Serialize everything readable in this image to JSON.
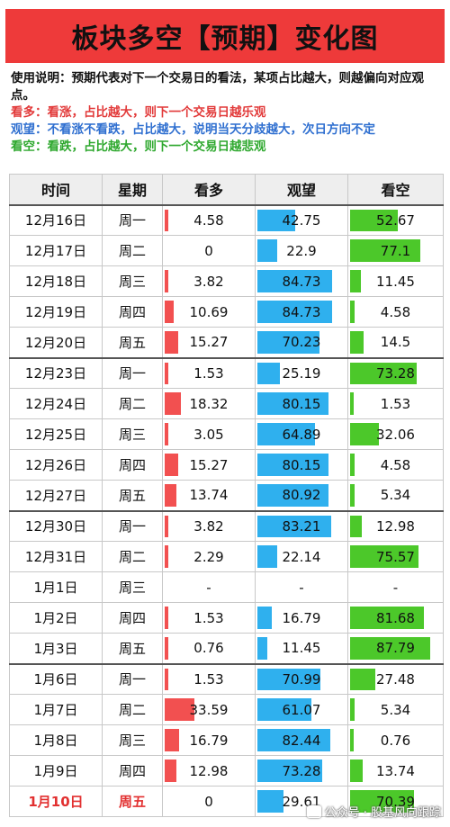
{
  "title": "板块多空【预期】变化图",
  "notes": {
    "usage": "使用说明：预期代表对下一个交易日的看法，某项占比越大，则越偏向对应观点。",
    "bull": "看多：看涨，占比越大，则下一个交易日越乐观",
    "neutral": "观望：不看涨不看跌，占比越大，说明当天分歧越大，次日方向不定",
    "bear": "看空：看跌，占比越大，则下一个交易日越悲观"
  },
  "headers": [
    "时间",
    "星期",
    "看多",
    "观望",
    "看空"
  ],
  "colors": {
    "bull": "#f25050",
    "neutral": "#2fb0ee",
    "bear": "#4cc82a",
    "title_bg": "#ee3a3a"
  },
  "rows": [
    {
      "date": "12月16日",
      "week": "周一",
      "bull": "4.58",
      "neutral": "42.75",
      "bear": "52.67",
      "week_start": true
    },
    {
      "date": "12月17日",
      "week": "周二",
      "bull": "0",
      "neutral": "22.9",
      "bear": "77.1"
    },
    {
      "date": "12月18日",
      "week": "周三",
      "bull": "3.82",
      "neutral": "84.73",
      "bear": "11.45"
    },
    {
      "date": "12月19日",
      "week": "周四",
      "bull": "10.69",
      "neutral": "84.73",
      "bear": "4.58"
    },
    {
      "date": "12月20日",
      "week": "周五",
      "bull": "15.27",
      "neutral": "70.23",
      "bear": "14.5"
    },
    {
      "date": "12月23日",
      "week": "周一",
      "bull": "1.53",
      "neutral": "25.19",
      "bear": "73.28",
      "week_start": true
    },
    {
      "date": "12月24日",
      "week": "周二",
      "bull": "18.32",
      "neutral": "80.15",
      "bear": "1.53"
    },
    {
      "date": "12月25日",
      "week": "周三",
      "bull": "3.05",
      "neutral": "64.89",
      "bear": "32.06"
    },
    {
      "date": "12月26日",
      "week": "周四",
      "bull": "15.27",
      "neutral": "80.15",
      "bear": "4.58"
    },
    {
      "date": "12月27日",
      "week": "周五",
      "bull": "13.74",
      "neutral": "80.92",
      "bear": "5.34"
    },
    {
      "date": "12月30日",
      "week": "周一",
      "bull": "3.82",
      "neutral": "83.21",
      "bear": "12.98",
      "week_start": true
    },
    {
      "date": "12月31日",
      "week": "周二",
      "bull": "2.29",
      "neutral": "22.14",
      "bear": "75.57"
    },
    {
      "date": "1月1日",
      "week": "周三",
      "bull": "-",
      "neutral": "-",
      "bear": "-"
    },
    {
      "date": "1月2日",
      "week": "周四",
      "bull": "1.53",
      "neutral": "16.79",
      "bear": "81.68"
    },
    {
      "date": "1月3日",
      "week": "周五",
      "bull": "0.76",
      "neutral": "11.45",
      "bear": "87.79"
    },
    {
      "date": "1月6日",
      "week": "周一",
      "bull": "1.53",
      "neutral": "70.99",
      "bear": "27.48",
      "week_start": true
    },
    {
      "date": "1月7日",
      "week": "周二",
      "bull": "33.59",
      "neutral": "61.07",
      "bear": "5.34"
    },
    {
      "date": "1月8日",
      "week": "周三",
      "bull": "16.79",
      "neutral": "82.44",
      "bear": "0.76"
    },
    {
      "date": "1月9日",
      "week": "周四",
      "bull": "12.98",
      "neutral": "73.28",
      "bear": "13.74"
    },
    {
      "date": "1月10日",
      "week": "周五",
      "bull": "0",
      "neutral": "29.61",
      "bear": "70.39",
      "today": true
    }
  ],
  "watermark": {
    "icon": "wechat-icon",
    "text": "公众号 · 股基风向跟踪"
  }
}
